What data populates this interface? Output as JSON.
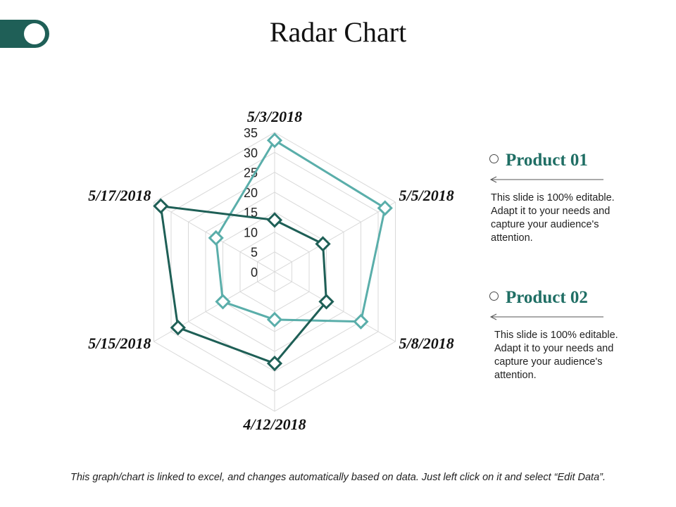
{
  "slide": {
    "title": "Radar Chart",
    "footer": "This graph/chart is linked to excel, and changes automatically based on data. Just left click on it and select “Edit Data”."
  },
  "colors": {
    "product01": "#5aaeaa",
    "product02": "#1e5f56",
    "grid": "#d9d9d9",
    "toggle": "#1f5f57"
  },
  "legend": [
    {
      "name": "Product 01",
      "description": "This slide is 100% editable. Adapt it to your needs and capture your audience's attention."
    },
    {
      "name": "Product 02",
      "description": "This slide is 100% editable. Adapt it to your needs and capture your audience's attention."
    }
  ],
  "chart_data": {
    "type": "radar",
    "categories": [
      "5/3/2018",
      "5/5/2018",
      "5/8/2018",
      "4/12/2018",
      "5/15/2018",
      "5/17/2018"
    ],
    "rlim": [
      0,
      35
    ],
    "ticks": [
      0,
      5,
      10,
      15,
      20,
      25,
      30,
      35
    ],
    "grid": true,
    "series": [
      {
        "name": "Product 01",
        "values": [
          33,
          32,
          25,
          12,
          15,
          17
        ]
      },
      {
        "name": "Product 02",
        "values": [
          13,
          14,
          15,
          23,
          28,
          33
        ]
      }
    ]
  }
}
